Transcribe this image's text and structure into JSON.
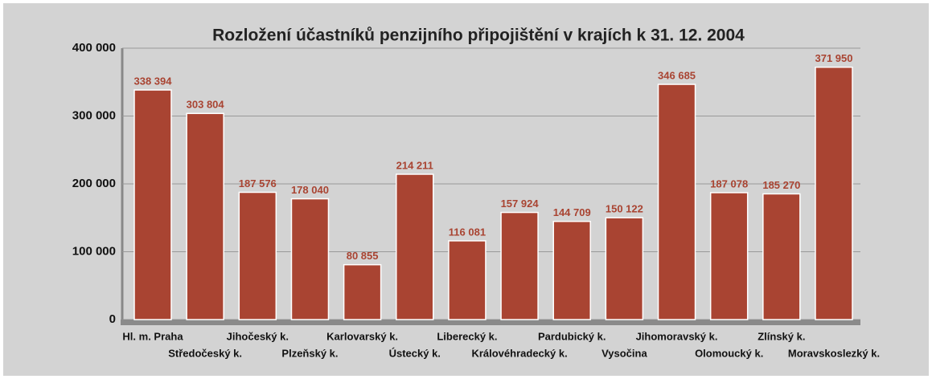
{
  "chart_data": {
    "type": "bar",
    "title": "Rozložení účastníků penzijního připojištění v krajích k 31. 12. 2004",
    "categories": [
      "Hl. m. Praha",
      "Středočeský k.",
      "Jihočeský k.",
      "Plzeňský k.",
      "Karlovarský k.",
      "Ústecký k.",
      "Liberecký k.",
      "Královéhradecký k.",
      "Pardubický k.",
      "Vysočina",
      "Jihomoravský k.",
      "Olomoucký k.",
      "Zlínský k.",
      "Moravskoslezký k."
    ],
    "values": [
      338394,
      303804,
      187576,
      178040,
      80855,
      214211,
      116081,
      157924,
      144709,
      150122,
      346685,
      187078,
      185270,
      371950
    ],
    "value_labels": [
      "338 394",
      "303 804",
      "187 576",
      "178 040",
      "80 855",
      "214 211",
      "116 081",
      "157 924",
      "144 709",
      "150 122",
      "346 685",
      "187 078",
      "185 270",
      "371 950"
    ],
    "color": "#a94432",
    "ylim": [
      0,
      400000
    ],
    "yticks": [
      {
        "value": 0,
        "label": "0"
      },
      {
        "value": 100000,
        "label": "100 000"
      },
      {
        "value": 200000,
        "label": "200 000"
      },
      {
        "value": 300000,
        "label": "300 000"
      },
      {
        "value": 400000,
        "label": "400 000"
      }
    ],
    "grid": true
  }
}
